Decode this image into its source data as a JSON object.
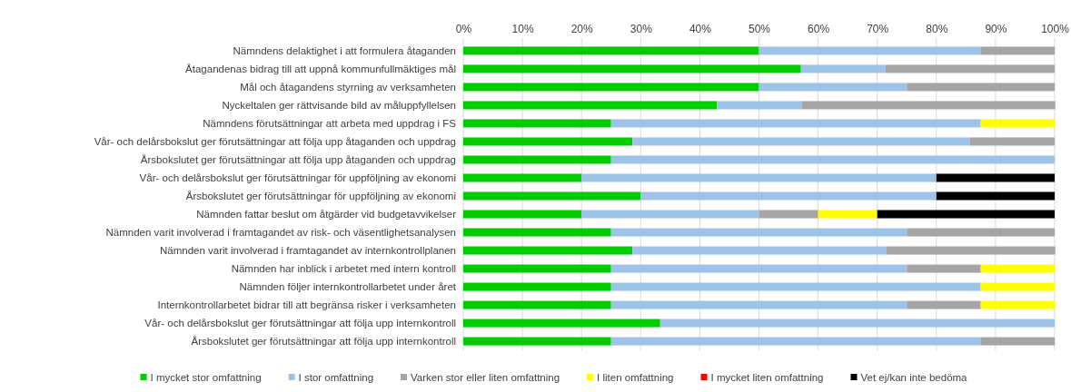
{
  "chart_data": {
    "type": "bar",
    "orientation": "horizontal",
    "stacked": true,
    "categories": [
      "Nämndens delaktighet i att formulera åtaganden",
      "Åtagandenas bidrag till att uppnå kommunfullmäktiges mål",
      "Mål och åtagandens styrning av verksamheten",
      "Nyckeltalen ger rättvisande bild av måluppfyllelsen",
      "Nämndens förutsättningar att arbeta med uppdrag i FS",
      "Vår- och delårsbokslut ger förutsättningar att följa upp åtaganden och uppdrag",
      "Årsbokslutet ger  förutsättningar att följa upp åtaganden och uppdrag",
      "Vår- och delårsbokslut ger förutsättningar för uppföljning av ekonomi",
      "Årsbokslutet ger förutsättningar för uppföljning av ekonomi",
      "Nämnden fattar beslut om åtgärder vid budgetavvikelser",
      "Nämnden varit involverad i framtagandet av risk- och väsentlighetsanalysen",
      "Nämnden varit involverad i framtagandet av internkontrollplanen",
      "Nämnden har inblick i arbetet med intern kontroll",
      "Nämnden följer internkontrollarbetet under året",
      "Internkontrollarbetet bidrar till att begränsa risker i verksamheten",
      "Vår- och delårsbokslut ger förutsättningar att följa upp internkontroll",
      "Årsbokslutet ger förutsättningar att följa upp internkontroll"
    ],
    "series": [
      {
        "name": "I mycket stor omfattning",
        "color": "#00cc00",
        "values": [
          50,
          57.1,
          50,
          42.9,
          25,
          28.6,
          25,
          20,
          30,
          20,
          25,
          28.6,
          25,
          25,
          25,
          33.3,
          25
        ]
      },
      {
        "name": "I stor omfattning",
        "color": "#9dc3e6",
        "values": [
          37.5,
          14.3,
          25,
          14.3,
          62.5,
          57.1,
          75,
          60,
          50,
          30,
          50,
          42.9,
          50,
          62.5,
          50,
          66.7,
          62.5
        ]
      },
      {
        "name": "Varken stor eller liten omfattning",
        "color": "#a5a5a5",
        "values": [
          12.5,
          28.6,
          25,
          42.9,
          0,
          14.3,
          0,
          0,
          0,
          10,
          25,
          28.6,
          12.5,
          0,
          12.5,
          0,
          12.5
        ]
      },
      {
        "name": "I liten omfattning",
        "color": "#ffff00",
        "values": [
          0,
          0,
          0,
          0,
          12.5,
          0,
          0,
          0,
          0,
          10,
          0,
          0,
          12.5,
          12.5,
          12.5,
          0,
          0
        ]
      },
      {
        "name": "I mycket liten omfattning",
        "color": "#ff0000",
        "values": [
          0,
          0,
          0,
          0,
          0,
          0,
          0,
          0,
          0,
          0,
          0,
          0,
          0,
          0,
          0,
          0,
          0
        ]
      },
      {
        "name": "Vet ej/kan inte bedöma",
        "color": "#000000",
        "values": [
          0,
          0,
          0,
          0,
          0,
          0,
          0,
          20,
          20,
          30,
          0,
          0,
          0,
          0,
          0,
          0,
          0
        ]
      }
    ],
    "xlim": [
      0,
      100
    ],
    "xticks": [
      {
        "value": 0,
        "label": "0%"
      },
      {
        "value": 10,
        "label": "10%"
      },
      {
        "value": 20,
        "label": "20%"
      },
      {
        "value": 30,
        "label": "30%"
      },
      {
        "value": 40,
        "label": "40%"
      },
      {
        "value": 50,
        "label": "50%"
      },
      {
        "value": 60,
        "label": "60%"
      },
      {
        "value": 70,
        "label": "70%"
      },
      {
        "value": 80,
        "label": "80%"
      },
      {
        "value": 90,
        "label": "90%"
      },
      {
        "value": 100,
        "label": "100%"
      }
    ],
    "grid": "x",
    "legend": "bottom"
  }
}
